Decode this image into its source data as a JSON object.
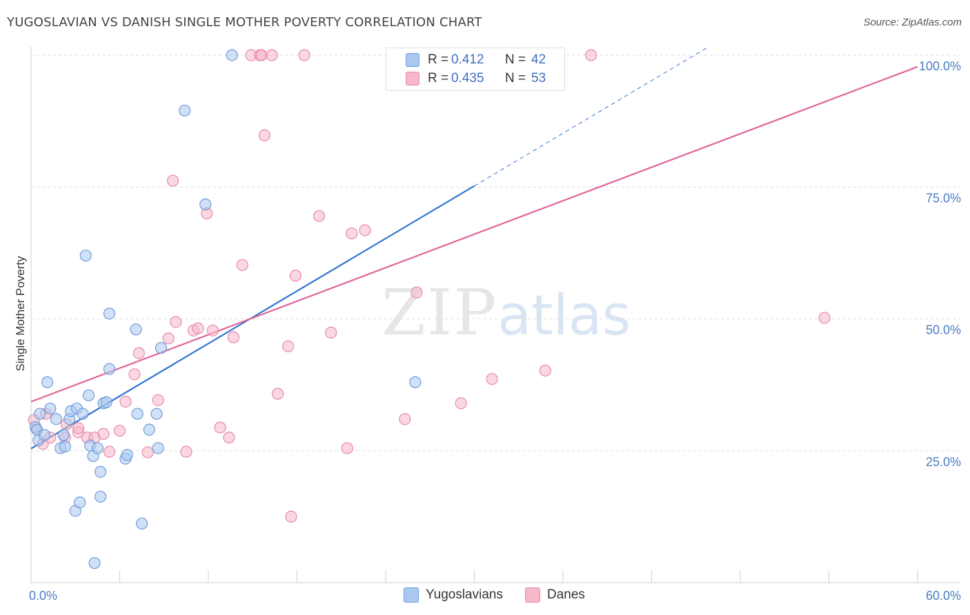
{
  "title": "YUGOSLAVIAN VS DANISH SINGLE MOTHER POVERTY CORRELATION CHART",
  "source": "Source: ZipAtlas.com",
  "watermark": {
    "zip": "ZIP",
    "atlas": "atlas"
  },
  "legend": {
    "rows": [
      {
        "r_label": "R =",
        "r_value": "0.412",
        "n_label": "N =",
        "n_value": "42",
        "color": "#a9c8f0"
      },
      {
        "r_label": "R =",
        "r_value": "0.435",
        "n_label": "N =",
        "n_value": "53",
        "color": "#f6b7c9"
      }
    ]
  },
  "bottom_legend": [
    {
      "label": "Yugoslavians",
      "color": "#a9c8f0"
    },
    {
      "label": "Danes",
      "color": "#f6b7c9"
    }
  ],
  "chart_data": {
    "type": "scatter",
    "ylabel": "Single Mother Poverty",
    "xlabel": "",
    "xlim": [
      0,
      60
    ],
    "ylim": [
      0,
      100
    ],
    "x_tick_labels": [
      {
        "value": 0,
        "label": "0.0%"
      },
      {
        "value": 60,
        "label": "60.0%"
      }
    ],
    "y_tick_labels": [
      {
        "value": 25,
        "label": "25.0%"
      },
      {
        "value": 50,
        "label": "50.0%"
      },
      {
        "value": 75,
        "label": "75.0%"
      },
      {
        "value": 100,
        "label": "100.0%"
      }
    ],
    "series": [
      {
        "name": "Yugoslavians",
        "color": "#a9c8f0",
        "stroke": "#6f9ad8",
        "line_color": "#2f74d0",
        "trend": {
          "x0": 0,
          "y0": 25.4,
          "x1": 30,
          "y1": 75.2,
          "dash_to_x": 45.8,
          "dash_to_y": 101.5
        },
        "points": [
          [
            0.3,
            29.5
          ],
          [
            0.4,
            29
          ],
          [
            0.5,
            27
          ],
          [
            0.6,
            32
          ],
          [
            0.9,
            28
          ],
          [
            1.1,
            38
          ],
          [
            1.3,
            33
          ],
          [
            1.7,
            31
          ],
          [
            2.0,
            25.5
          ],
          [
            2.2,
            28
          ],
          [
            2.3,
            25.8
          ],
          [
            2.6,
            31
          ],
          [
            2.7,
            32.5
          ],
          [
            3.1,
            33
          ],
          [
            3.5,
            32
          ],
          [
            3.7,
            62
          ],
          [
            3.9,
            35.5
          ],
          [
            4.0,
            26
          ],
          [
            4.2,
            24
          ],
          [
            4.5,
            25.5
          ],
          [
            4.7,
            21
          ],
          [
            4.9,
            34
          ],
          [
            5.3,
            40.5
          ],
          [
            5.3,
            51
          ],
          [
            6.4,
            23.5
          ],
          [
            6.5,
            24.2
          ],
          [
            7.1,
            48
          ],
          [
            7.2,
            32
          ],
          [
            7.5,
            11.2
          ],
          [
            8.0,
            29
          ],
          [
            8.5,
            32
          ],
          [
            8.6,
            25.5
          ],
          [
            8.8,
            44.5
          ],
          [
            3.0,
            13.6
          ],
          [
            3.3,
            15.2
          ],
          [
            4.7,
            16.3
          ],
          [
            4.3,
            3.7
          ],
          [
            10.4,
            89.5
          ],
          [
            11.8,
            71.7
          ],
          [
            13.6,
            100
          ],
          [
            26.0,
            38
          ],
          [
            5.1,
            34.2
          ]
        ]
      },
      {
        "name": "Danes",
        "color": "#f6b7c9",
        "stroke": "#e68aa8",
        "line_color": "#e0649a",
        "trend": {
          "x0": 0,
          "y0": 34.3,
          "x1": 60,
          "y1": 97.8
        },
        "points": [
          [
            0.2,
            30.8
          ],
          [
            0.4,
            29
          ],
          [
            0.8,
            26.3
          ],
          [
            1.0,
            32
          ],
          [
            1.3,
            27.5
          ],
          [
            2.3,
            27.5
          ],
          [
            2.4,
            30
          ],
          [
            3.2,
            28.5
          ],
          [
            3.2,
            29.3
          ],
          [
            3.8,
            27.5
          ],
          [
            4.3,
            27.5
          ],
          [
            4.9,
            28.2
          ],
          [
            5.3,
            24.8
          ],
          [
            6.0,
            28.8
          ],
          [
            6.4,
            34.3
          ],
          [
            7.0,
            39.5
          ],
          [
            7.3,
            43.5
          ],
          [
            7.9,
            24.7
          ],
          [
            8.6,
            34.6
          ],
          [
            9.3,
            46.3
          ],
          [
            9.6,
            76.2
          ],
          [
            9.8,
            49.4
          ],
          [
            10.5,
            24.8
          ],
          [
            11.0,
            47.8
          ],
          [
            11.3,
            48.2
          ],
          [
            11.9,
            70
          ],
          [
            12.3,
            47.8
          ],
          [
            12.8,
            29.4
          ],
          [
            13.4,
            27.5
          ],
          [
            13.7,
            46.5
          ],
          [
            14.3,
            60.2
          ],
          [
            14.9,
            100
          ],
          [
            15.5,
            100
          ],
          [
            15.6,
            100
          ],
          [
            15.8,
            84.8
          ],
          [
            16.3,
            100
          ],
          [
            16.7,
            35.8
          ],
          [
            17.4,
            44.8
          ],
          [
            17.6,
            12.5
          ],
          [
            17.9,
            58.2
          ],
          [
            18.5,
            100
          ],
          [
            19.5,
            69.5
          ],
          [
            20.3,
            47.4
          ],
          [
            21.4,
            25.5
          ],
          [
            21.7,
            66.2
          ],
          [
            22.6,
            66.8
          ],
          [
            25.3,
            31
          ],
          [
            26.1,
            55
          ],
          [
            29.1,
            34
          ],
          [
            31.2,
            38.6
          ],
          [
            34.8,
            40.2
          ],
          [
            37.9,
            100
          ],
          [
            53.7,
            50.2
          ]
        ]
      }
    ],
    "grid": true
  }
}
